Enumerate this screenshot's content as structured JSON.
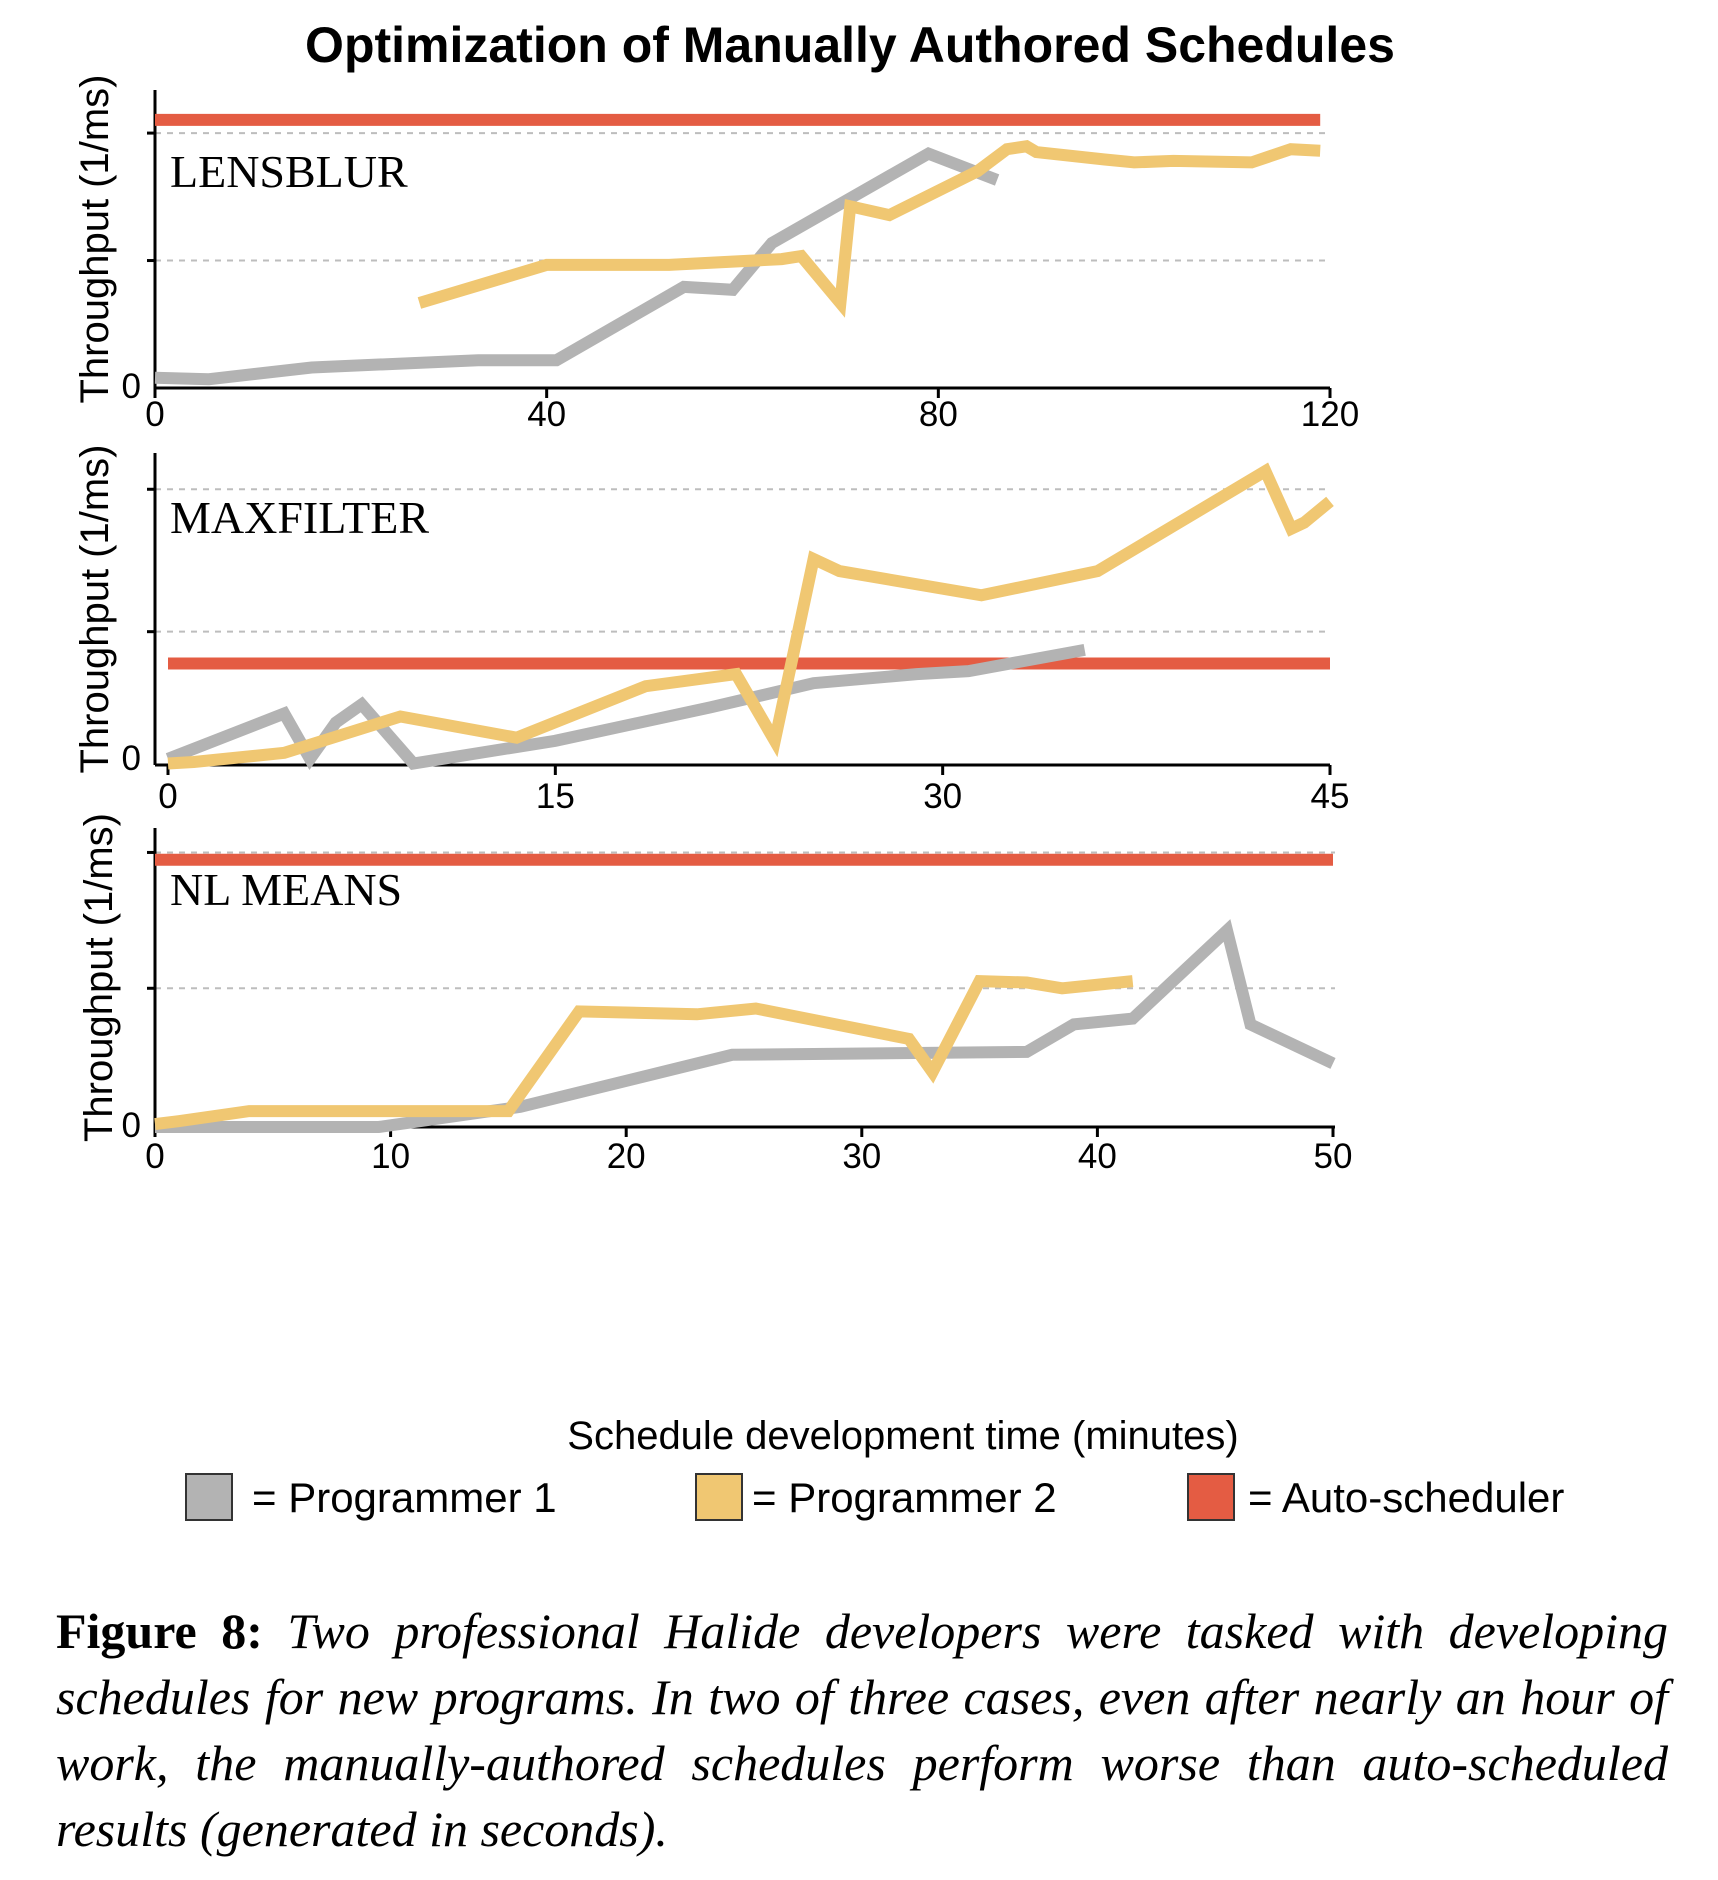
{
  "chart_data": {
    "type": "line",
    "title": "Optimization of Manually Authored Schedules",
    "xlabel": "Schedule development time (minutes)",
    "legend": {
      "placement": "bottom",
      "items": [
        {
          "key": "p1",
          "label": "= Programmer 1",
          "color": "#b3b3b3"
        },
        {
          "key": "p2",
          "label": "= Programmer 2",
          "color": "#f0c772"
        },
        {
          "key": "auto",
          "label": "= Auto-scheduler",
          "color": "#e45c43"
        }
      ]
    },
    "panels": [
      {
        "label": "LENSBLUR",
        "ylabel": "Throughput (1/ms)",
        "xlim": [
          0,
          120
        ],
        "xticks": [
          0,
          40,
          80,
          120
        ],
        "xtick_labels": [
          "0",
          "40",
          "80",
          "120"
        ],
        "ylim": [
          0,
          1
        ],
        "ytick_labels": [
          "0"
        ],
        "grid_y": [
          0.435,
          0.87
        ],
        "series": {
          "p1": {
            "x": [
              0,
              5.5,
              16,
              33,
              41,
              54,
              59,
              63,
              79,
              86
            ],
            "y": [
              0.035,
              0.03,
              0.07,
              0.095,
              0.095,
              0.345,
              0.335,
              0.495,
              0.8,
              0.71
            ]
          },
          "p2": {
            "x": [
              27,
              40,
              52.5,
              64,
              66,
              70,
              71,
              75,
              84,
              87,
              89,
              90,
              97,
              100,
              104,
              112,
              116,
              119
            ],
            "y": [
              0.29,
              0.42,
              0.42,
              0.44,
              0.45,
              0.29,
              0.62,
              0.59,
              0.74,
              0.815,
              0.825,
              0.805,
              0.78,
              0.77,
              0.775,
              0.77,
              0.815,
              0.81
            ]
          },
          "auto": {
            "x": [
              0,
              119
            ],
            "y": [
              0.915,
              0.915
            ]
          }
        }
      },
      {
        "label": "MAXFILTER",
        "ylabel": "Throughput (1/ms)",
        "xlim": [
          0,
          45
        ],
        "xticks": [
          0,
          15,
          30,
          45
        ],
        "xtick_labels": [
          "0",
          "15",
          "30",
          "45"
        ],
        "ylim": [
          0,
          1
        ],
        "ytick_labels": [
          "0"
        ],
        "grid_y": [
          0.44,
          0.91
        ],
        "series": {
          "p1": {
            "x": [
              0,
              4.5,
              5.5,
              6.5,
              7.5,
              9.5,
              15,
              21,
              25,
              29,
              31,
              35.5
            ],
            "y": [
              0.02,
              0.17,
              0.02,
              0.14,
              0.2,
              0.005,
              0.08,
              0.19,
              0.27,
              0.3,
              0.31,
              0.38
            ]
          },
          "p2": {
            "x": [
              0,
              1,
              4.5,
              9,
              13.5,
              18.5,
              22,
              23.5,
              25,
              26,
              31.5,
              36,
              42.5,
              43.5,
              44,
              45
            ],
            "y": [
              0.005,
              0.01,
              0.04,
              0.16,
              0.09,
              0.26,
              0.3,
              0.08,
              0.68,
              0.64,
              0.56,
              0.64,
              0.97,
              0.78,
              0.8,
              0.87
            ]
          },
          "auto": {
            "x": [
              0,
              45
            ],
            "y": [
              0.335,
              0.335
            ]
          }
        }
      },
      {
        "label": "NL MEANS",
        "ylabel": "Throughput (1/ms)",
        "xlim": [
          0,
          50
        ],
        "xticks": [
          0,
          10,
          20,
          30,
          40,
          50
        ],
        "xtick_labels": [
          "0",
          "10",
          "20",
          "30",
          "40",
          "50"
        ],
        "ylim": [
          0,
          1
        ],
        "ytick_labels": [
          "0"
        ],
        "grid_y": [
          0.48,
          0.95
        ],
        "series": {
          "p1": {
            "x": [
              0,
              9.5,
              15.5,
              24.5,
              37,
              39,
              41.5,
              45.5,
              46.5,
              50
            ],
            "y": [
              0.0,
              0.0,
              0.07,
              0.25,
              0.26,
              0.355,
              0.375,
              0.68,
              0.355,
              0.22
            ]
          },
          "p2": {
            "x": [
              0,
              1,
              4,
              15,
              18,
              23,
              25.5,
              32,
              33,
              35,
              37,
              38.5,
              41.5
            ],
            "y": [
              0.01,
              0.02,
              0.055,
              0.055,
              0.4,
              0.39,
              0.41,
              0.305,
              0.19,
              0.505,
              0.5,
              0.48,
              0.505
            ]
          },
          "auto": {
            "x": [
              0,
              50
            ],
            "y": [
              0.925,
              0.925
            ]
          }
        }
      }
    ]
  },
  "caption": {
    "label": "Figure 8:",
    "text": "Two professional Halide developers were tasked with developing schedules for new programs.  In two of three cases, even after nearly an hour of work, the manually-authored schedules perform worse than auto-scheduled results (generated in seconds)."
  }
}
